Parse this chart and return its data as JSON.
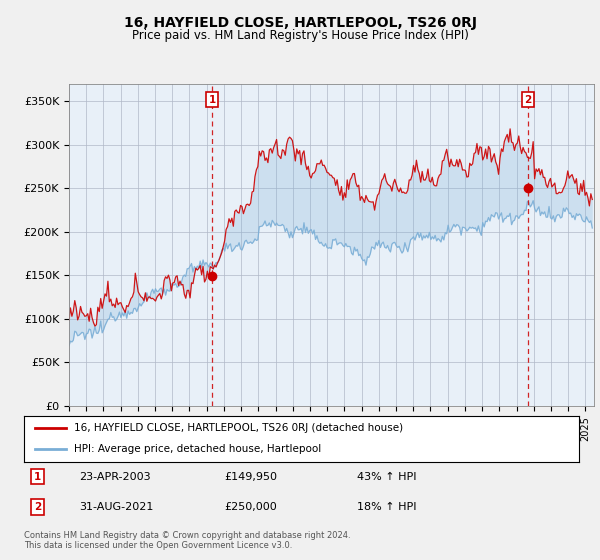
{
  "title": "16, HAYFIELD CLOSE, HARTLEPOOL, TS26 0RJ",
  "subtitle": "Price paid vs. HM Land Registry's House Price Index (HPI)",
  "ylabel_ticks": [
    "£0",
    "£50K",
    "£100K",
    "£150K",
    "£200K",
    "£250K",
    "£300K",
    "£350K"
  ],
  "ytick_values": [
    0,
    50000,
    100000,
    150000,
    200000,
    250000,
    300000,
    350000
  ],
  "ylim": [
    0,
    370000
  ],
  "xlim_start": 1995.0,
  "xlim_end": 2025.5,
  "sale1": {
    "date": 2003.31,
    "price": 149950,
    "label": "1"
  },
  "sale2": {
    "date": 2021.66,
    "price": 250000,
    "label": "2"
  },
  "vline1_x": 2003.31,
  "vline2_x": 2021.66,
  "legend_red": "16, HAYFIELD CLOSE, HARTLEPOOL, TS26 0RJ (detached house)",
  "legend_blue": "HPI: Average price, detached house, Hartlepool",
  "footer": "Contains HM Land Registry data © Crown copyright and database right 2024.\nThis data is licensed under the Open Government Licence v3.0.",
  "red_color": "#cc0000",
  "blue_color": "#7aaed6",
  "fill_color": "#ddeeff",
  "vline_color": "#cc0000",
  "background_color": "#f0f0f0",
  "plot_bg_color": "#e8f0f8",
  "grid_color": "#b0b8c8"
}
